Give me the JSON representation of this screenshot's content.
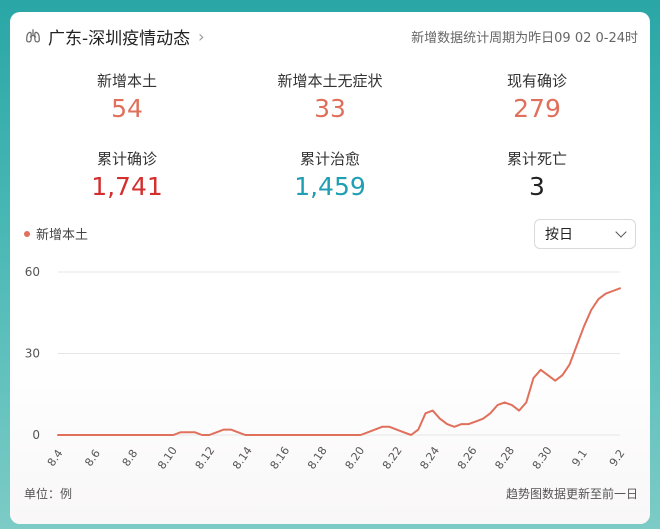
{
  "header": {
    "title": "广东-深圳疫情动态",
    "period_note": "新增数据统计周期为昨日09 02 0-24时"
  },
  "stats": [
    {
      "label": "新增本土",
      "value": "54",
      "color": "#e0705b"
    },
    {
      "label": "新增本土无症状",
      "value": "33",
      "color": "#e0705b"
    },
    {
      "label": "现有确诊",
      "value": "279",
      "color": "#e0705b"
    },
    {
      "label": "累计确诊",
      "value": "1,741",
      "color": "#d32f2f"
    },
    {
      "label": "累计治愈",
      "value": "1,459",
      "color": "#1f9fb4"
    },
    {
      "label": "累计死亡",
      "value": "3",
      "color": "#222222"
    }
  ],
  "legend_label": "新增本土",
  "select": {
    "value": "按日"
  },
  "footer": {
    "unit": "单位：例",
    "note": "趋势图数据更新至前一日"
  },
  "chart_data": {
    "type": "line",
    "series": [
      {
        "name": "新增本土",
        "color": "#e0705b",
        "values": [
          0,
          0,
          0,
          0,
          0,
          0,
          0,
          0,
          0,
          0,
          0,
          0,
          0,
          0,
          0,
          0,
          0,
          1,
          1,
          1,
          0,
          0,
          1,
          2,
          2,
          1,
          0,
          0,
          0,
          0,
          0,
          0,
          0,
          0,
          0,
          0,
          0,
          0,
          0,
          0,
          0,
          0,
          0,
          1,
          2,
          3,
          3,
          2,
          1,
          0,
          2,
          8,
          9,
          6,
          4,
          3,
          4,
          4,
          5,
          6,
          8,
          11,
          12,
          11,
          9,
          12,
          21,
          24,
          22,
          20,
          22,
          26,
          33,
          40,
          46,
          50,
          52,
          53,
          54
        ]
      }
    ],
    "x_ticks": [
      "8.4",
      "8.6",
      "8.8",
      "8.10",
      "8.12",
      "8.14",
      "8.16",
      "8.18",
      "8.20",
      "8.22",
      "8.24",
      "8.26",
      "8.28",
      "8.30",
      "9.1",
      "9.2"
    ],
    "y_ticks": [
      "0",
      "30",
      "60"
    ],
    "ylim": [
      0,
      60
    ],
    "grid": true
  }
}
